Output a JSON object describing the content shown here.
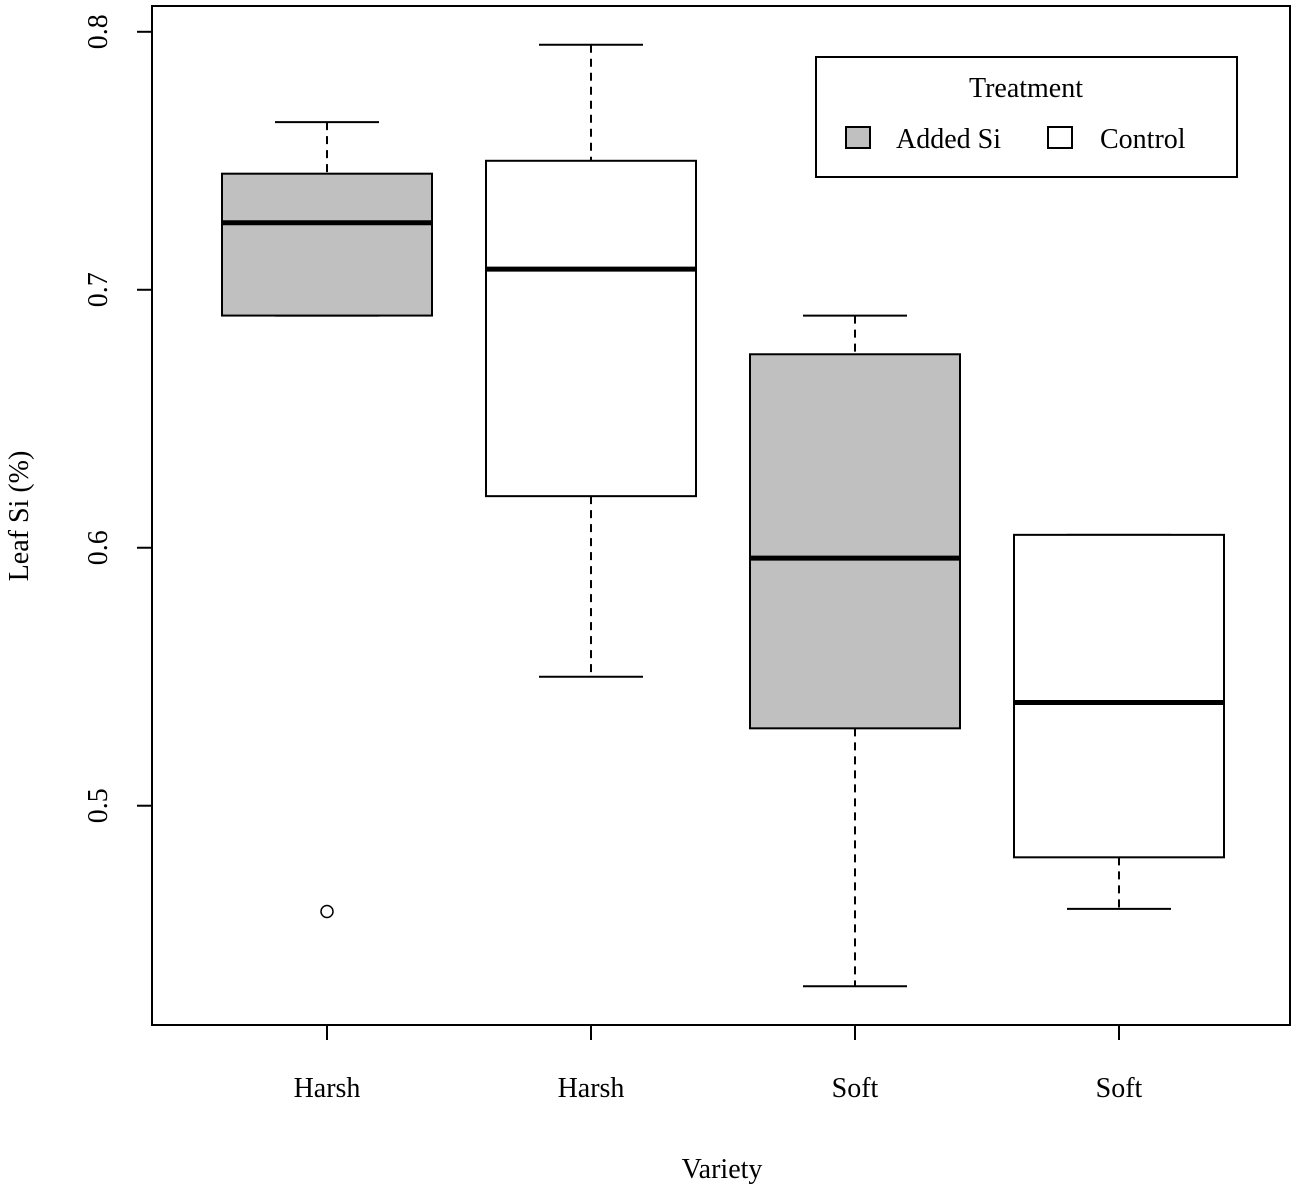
{
  "chart_data": {
    "type": "box",
    "xlabel": "Variety",
    "ylabel": "Leaf Si (%)",
    "ylim": [
      0.415,
      0.81
    ],
    "yticks": [
      0.5,
      0.6,
      0.7,
      0.8
    ],
    "ytick_labels": [
      "0.5",
      "0.6",
      "0.7",
      "0.8"
    ],
    "grid": false,
    "legend": {
      "title": "Treatment",
      "position": "top-right",
      "entries": [
        {
          "label": "Added Si",
          "color": "#c0c0c0"
        },
        {
          "label": "Control",
          "color": "#ffffff"
        }
      ]
    },
    "boxes": [
      {
        "category": "Harsh",
        "treatment": "Added Si",
        "fill": "#c0c0c0",
        "whisker_low": 0.69,
        "q1": 0.69,
        "median": 0.726,
        "q3": 0.745,
        "whisker_high": 0.765,
        "outliers": [
          0.459
        ]
      },
      {
        "category": "Harsh",
        "treatment": "Control",
        "fill": "#ffffff",
        "whisker_low": 0.55,
        "q1": 0.62,
        "median": 0.708,
        "q3": 0.75,
        "whisker_high": 0.795,
        "outliers": []
      },
      {
        "category": "Soft",
        "treatment": "Added Si",
        "fill": "#c0c0c0",
        "whisker_low": 0.43,
        "q1": 0.53,
        "median": 0.596,
        "q3": 0.675,
        "whisker_high": 0.69,
        "outliers": []
      },
      {
        "category": "Soft",
        "treatment": "Control",
        "fill": "#ffffff",
        "whisker_low": 0.46,
        "q1": 0.48,
        "median": 0.54,
        "q3": 0.605,
        "whisker_high": 0.605,
        "outliers": []
      }
    ]
  }
}
